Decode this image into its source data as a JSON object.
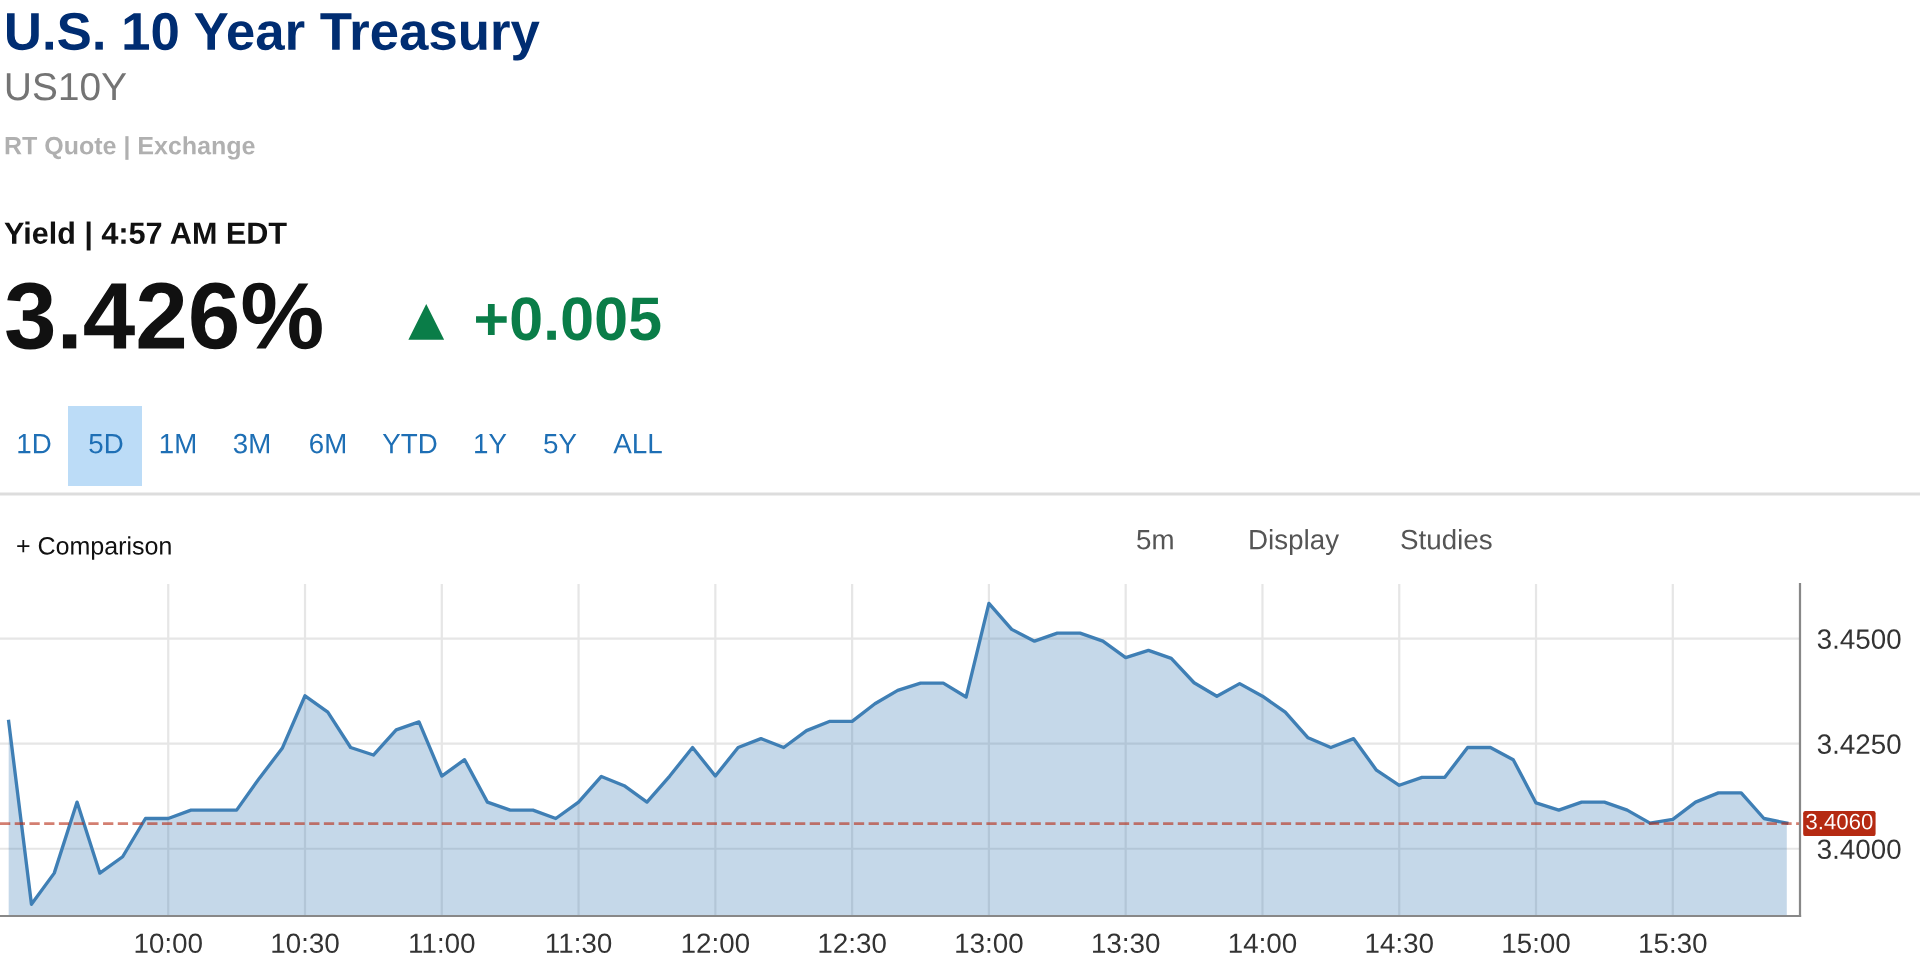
{
  "chart_data": {
    "type": "area",
    "title": "U.S. 10 Year Treasury",
    "subtitle": "US10Y",
    "annotations": [
      "RT Quote | Exchange",
      "Yield | 4:57 AM EDT",
      "3.426%",
      "▲ +0.005",
      "1D",
      "5D",
      "1M",
      "3M",
      "6M",
      "YTD",
      "1Y",
      "5Y",
      "ALL",
      "+ Comparison",
      "5m",
      "Display",
      "Studies"
    ],
    "x": [
      9.4167,
      9.5,
      9.5833,
      9.6667,
      9.75,
      9.8333,
      9.9167,
      10.0,
      10.0833,
      10.1667,
      10.25,
      10.3333,
      10.4167,
      10.5,
      10.5833,
      10.6667,
      10.75,
      10.8333,
      10.9167,
      11.0,
      11.0833,
      11.1667,
      11.25,
      11.3333,
      11.4167,
      11.5,
      11.5833,
      11.6667,
      11.75,
      11.8333,
      11.9167,
      12.0,
      12.0833,
      12.1667,
      12.25,
      12.3333,
      12.4167,
      12.5,
      12.5833,
      12.6667,
      12.75,
      12.8333,
      12.9167,
      13.0,
      13.0833,
      13.1667,
      13.25,
      13.3333,
      13.4167,
      13.5,
      13.5833,
      13.6667,
      13.75,
      13.8333,
      13.9167,
      14.0,
      14.0833,
      14.1667,
      14.25,
      14.3333,
      14.4167,
      14.5,
      14.5833,
      14.6667,
      14.75,
      14.8333,
      14.9167,
      15.0,
      15.0833,
      15.1667,
      15.25,
      15.3333,
      15.4167,
      15.5,
      15.5833,
      15.6667,
      15.75,
      15.8333,
      15.9167
    ],
    "series": [
      {
        "color": "#3f7fb5",
        "values": [
          3.4303,
          3.3868,
          3.3942,
          3.4111,
          3.3942,
          3.3981,
          3.4072,
          3.4072,
          3.4092,
          3.4092,
          3.4092,
          3.4168,
          3.4239,
          3.4364,
          3.4325,
          3.4241,
          3.4223,
          3.4283,
          3.4302,
          3.4173,
          3.4212,
          3.4111,
          3.4092,
          3.4092,
          3.4072,
          3.4111,
          3.4172,
          3.415,
          3.4111,
          3.4173,
          3.4241,
          3.4173,
          3.4241,
          3.4262,
          3.4241,
          3.4281,
          3.4303,
          3.4303,
          3.4345,
          3.4377,
          3.4394,
          3.4394,
          3.4361,
          3.4584,
          3.4522,
          3.4494,
          3.4513,
          3.4513,
          3.4494,
          3.4455,
          3.4472,
          3.4453,
          3.4395,
          3.4363,
          3.4393,
          3.4363,
          3.4325,
          3.4264,
          3.4241,
          3.4262,
          3.4187,
          3.4151,
          3.417,
          3.417,
          3.4241,
          3.4241,
          3.4212,
          3.4109,
          3.4092,
          3.4111,
          3.4111,
          3.4092,
          3.4061,
          3.407,
          3.4111,
          3.4133,
          3.4133,
          3.4072,
          3.4061
        ]
      }
    ],
    "xlim": [
      9.385,
      15.965
    ],
    "xticks": [
      {
        "value": 10,
        "label": "10:00"
      },
      {
        "value": 10.5,
        "label": "10:30"
      },
      {
        "value": 11,
        "label": "11:00"
      },
      {
        "value": 11.5,
        "label": "11:30"
      },
      {
        "value": 12,
        "label": "12:00"
      },
      {
        "value": 12.5,
        "label": "12:30"
      },
      {
        "value": 13,
        "label": "13:00"
      },
      {
        "value": 13.5,
        "label": "13:30"
      },
      {
        "value": 14,
        "label": "14:00"
      },
      {
        "value": 14.5,
        "label": "14:30"
      },
      {
        "value": 15,
        "label": "15:00"
      },
      {
        "value": 15.5,
        "label": "15:30"
      }
    ],
    "ylim": [
      3.384,
      3.463
    ],
    "yticks": [
      {
        "value": 3.4,
        "label": "3.4000"
      },
      {
        "value": 3.425,
        "label": "3.4250"
      },
      {
        "value": 3.45,
        "label": "3.4500"
      }
    ],
    "ref_lines": [
      {
        "axis": "y",
        "value": 3.406,
        "label": "3.4060",
        "color": "#b52a12",
        "line_style": "dashed"
      }
    ],
    "grid": true,
    "legend": false
  }
}
